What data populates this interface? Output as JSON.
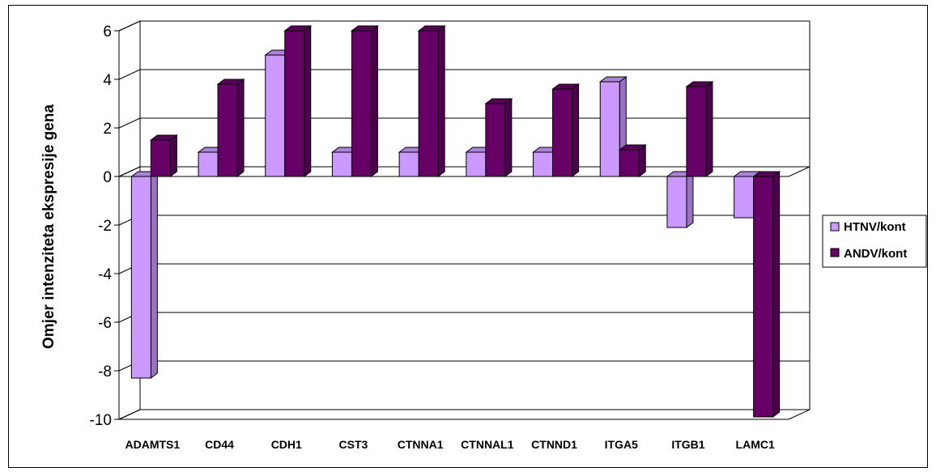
{
  "chart_data": {
    "type": "bar",
    "ylabel": "Omjer intenziteta ekspresije gena",
    "xlabel": "",
    "ylim": [
      -10,
      6
    ],
    "yticks": [
      6,
      4,
      2,
      0,
      -2,
      -4,
      -6,
      -8,
      -10
    ],
    "grid": true,
    "legend_position": "right",
    "categories": [
      "ADAMTS1",
      "CD44",
      "CDH1",
      "CST3",
      "CTNNA1",
      "CTNNAL1",
      "CTNND1",
      "ITGA5",
      "ITGB1",
      "LAMC1"
    ],
    "series": [
      {
        "name": "HTNV/kont",
        "color": "#CC99FF",
        "values": [
          -8.3,
          1.0,
          5.0,
          1.0,
          1.0,
          1.0,
          1.0,
          3.9,
          -2.1,
          -1.7
        ]
      },
      {
        "name": "ANDV/kont",
        "color": "#660066",
        "values": [
          1.5,
          3.8,
          6.0,
          6.0,
          6.0,
          3.0,
          3.6,
          1.1,
          3.7,
          -9.9
        ]
      }
    ]
  }
}
